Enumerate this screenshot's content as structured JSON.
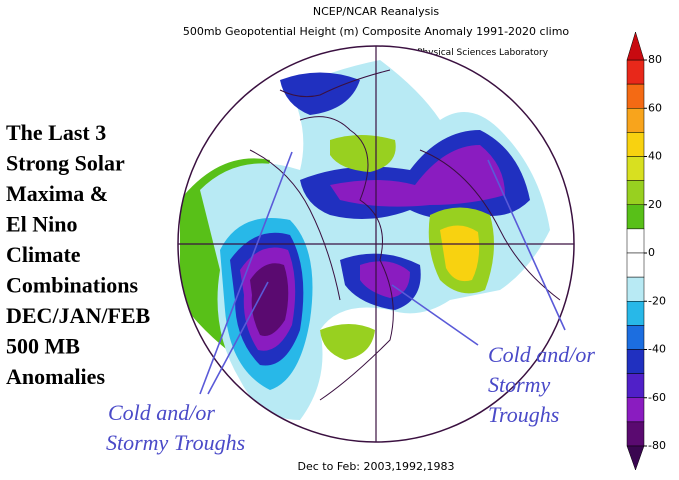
{
  "header": {
    "title": "NCEP/NCAR Reanalysis",
    "subtitle": "500mb Geopotential Height (m) Composite Anomaly 1991-2020 climo",
    "credit": "NOAA Physical Sciences Laboratory"
  },
  "side_text": [
    "The Last 3",
    "Strong Solar",
    "Maxima &",
    "El Nino",
    "Climate",
    "Combinations",
    "DEC/JAN/FEB",
    "500 MB",
    "Anomalies"
  ],
  "annotations": {
    "left": [
      "Cold and/or",
      "Stormy Troughs"
    ],
    "right": [
      "Cold and/or",
      "Stormy",
      "Troughs"
    ]
  },
  "footer": "Dec to Feb: 2003,1992,1983",
  "colorbar": {
    "ticks": [
      80,
      60,
      40,
      20,
      0,
      -20,
      -40,
      -60,
      -80
    ],
    "colors": [
      "#e8281a",
      "#f46a14",
      "#f8a41c",
      "#f8d210",
      "#d8e020",
      "#98d020",
      "#58c018",
      "#ffffff",
      "#ffffff",
      "#b8eaf4",
      "#28b8e8",
      "#1c6ee0",
      "#2030c0",
      "#5020c8",
      "#8a1cc0",
      "#5a0a70"
    ],
    "over_color": "#c80a10",
    "under_color": "#3a0650"
  }
}
